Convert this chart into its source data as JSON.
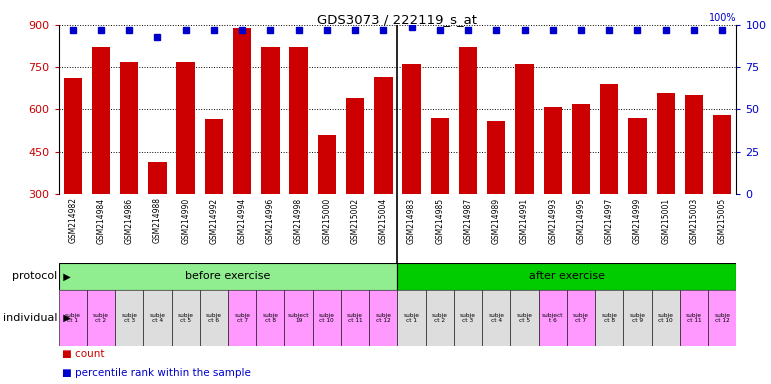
{
  "title": "GDS3073 / 222119_s_at",
  "samples": [
    "GSM214982",
    "GSM214984",
    "GSM214986",
    "GSM214988",
    "GSM214990",
    "GSM214992",
    "GSM214994",
    "GSM214996",
    "GSM214998",
    "GSM215000",
    "GSM215002",
    "GSM215004",
    "GSM214983",
    "GSM214985",
    "GSM214987",
    "GSM214989",
    "GSM214991",
    "GSM214993",
    "GSM214995",
    "GSM214997",
    "GSM214999",
    "GSM215001",
    "GSM215003",
    "GSM215005"
  ],
  "counts": [
    710,
    820,
    770,
    415,
    770,
    565,
    890,
    820,
    820,
    510,
    640,
    715,
    760,
    570,
    820,
    560,
    760,
    610,
    620,
    690,
    570,
    660,
    650,
    580
  ],
  "percentiles": [
    97,
    97,
    97,
    93,
    97,
    97,
    97,
    97,
    97,
    97,
    97,
    97,
    99,
    97,
    97,
    97,
    97,
    97,
    97,
    97,
    97,
    97,
    97,
    97
  ],
  "ylim_left": [
    300,
    900
  ],
  "yticks_left": [
    300,
    450,
    600,
    750,
    900
  ],
  "ylim_right": [
    0,
    100
  ],
  "yticks_right": [
    0,
    25,
    50,
    75,
    100
  ],
  "bar_color": "#cc0000",
  "dot_color": "#0000cc",
  "before_exercise_count": 12,
  "after_exercise_count": 12,
  "protocol_label": "protocol",
  "individual_label": "individual",
  "before_exercise_text": "before exercise",
  "after_exercise_text": "after exercise",
  "before_color": "#90ee90",
  "after_color": "#00cc00",
  "individual_colors_before": [
    "#ff99ff",
    "#ff99ff",
    "#dddddd",
    "#dddddd",
    "#dddddd",
    "#dddddd",
    "#ff99ff",
    "#ff99ff",
    "#ff99ff",
    "#ff99ff",
    "#ff99ff",
    "#ff99ff"
  ],
  "individual_colors_after": [
    "#dddddd",
    "#dddddd",
    "#dddddd",
    "#dddddd",
    "#dddddd",
    "#ff99ff",
    "#ff99ff",
    "#dddddd",
    "#dddddd",
    "#dddddd",
    "#ff99ff",
    "#ff99ff"
  ],
  "individual_labels_before": [
    "subje\nct 1",
    "subje\nct 2",
    "subje\nct 3",
    "subje\nct 4",
    "subje\nct 5",
    "subje\nct 6",
    "subje\nct 7",
    "subje\nct 8",
    "subject\n19",
    "subje\nct 10",
    "subje\nct 11",
    "subje\nct 12"
  ],
  "individual_labels_after": [
    "subje\nct 1",
    "subje\nct 2",
    "subje\nct 3",
    "subje\nct 4",
    "subje\nct 5",
    "subject\nt 6",
    "subje\nct 7",
    "subje\nct 8",
    "subje\nct 9",
    "subje\nct 10",
    "subje\nct 11",
    "subje\nct 12"
  ],
  "legend_count_label": "count",
  "legend_percentile_label": "percentile rank within the sample",
  "bg_color": "#ffffff",
  "xtick_bg_color": "#d0d0d0",
  "grid_color": "#555555"
}
